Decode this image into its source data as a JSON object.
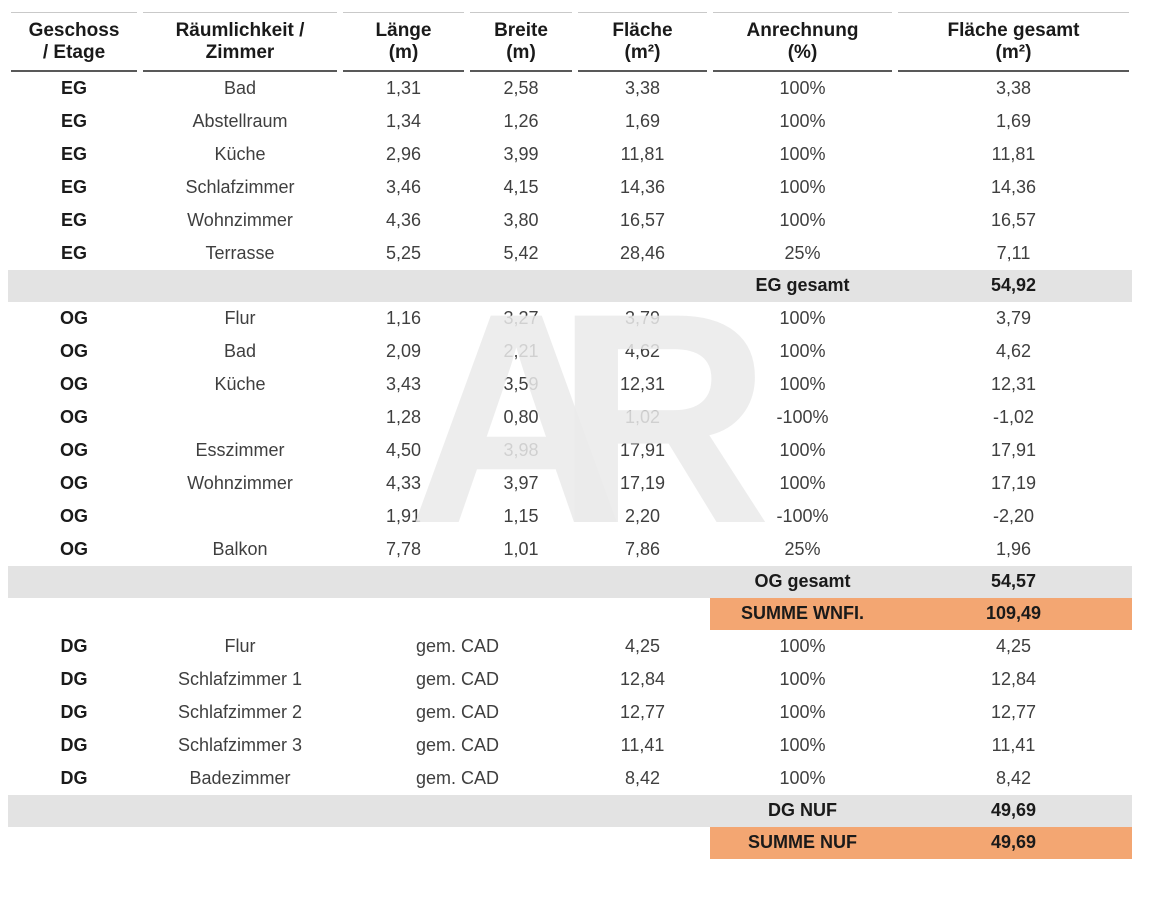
{
  "watermark": "AR",
  "colors": {
    "summary_gray": "#E3E3E3",
    "summary_orange": "#F3A672",
    "header_underline": "#595959"
  },
  "table": {
    "columns": [
      {
        "line1": "Geschoss",
        "line2": "/ Etage"
      },
      {
        "line1": "Räumlichkeit /",
        "line2": "Zimmer"
      },
      {
        "line1": "Länge",
        "line2": "(m)"
      },
      {
        "line1": "Breite",
        "line2": "(m)"
      },
      {
        "line1": "Fläche",
        "line2": "(m²)"
      },
      {
        "line1": "Anrechnung",
        "line2": "(%)"
      },
      {
        "line1": "Fläche gesamt",
        "line2": "(m²)"
      }
    ],
    "rows": [
      {
        "type": "data",
        "floor": "EG",
        "room": "Bad",
        "laenge": "1,31",
        "breite": "2,58",
        "flaeche": "3,38",
        "anrechnung": "100%",
        "gesamt": "3,38"
      },
      {
        "type": "data",
        "floor": "EG",
        "room": "Abstellraum",
        "laenge": "1,34",
        "breite": "1,26",
        "flaeche": "1,69",
        "anrechnung": "100%",
        "gesamt": "1,69"
      },
      {
        "type": "data",
        "floor": "EG",
        "room": "Küche",
        "laenge": "2,96",
        "breite": "3,99",
        "flaeche": "11,81",
        "anrechnung": "100%",
        "gesamt": "11,81"
      },
      {
        "type": "data",
        "floor": "EG",
        "room": "Schlafzimmer",
        "laenge": "3,46",
        "breite": "4,15",
        "flaeche": "14,36",
        "anrechnung": "100%",
        "gesamt": "14,36"
      },
      {
        "type": "data",
        "floor": "EG",
        "room": "Wohnzimmer",
        "laenge": "4,36",
        "breite": "3,80",
        "flaeche": "16,57",
        "anrechnung": "100%",
        "gesamt": "16,57"
      },
      {
        "type": "data",
        "floor": "EG",
        "room": "Terrasse",
        "laenge": "5,25",
        "breite": "5,42",
        "flaeche": "28,46",
        "anrechnung": "25%",
        "gesamt": "7,11"
      },
      {
        "type": "summary_gray",
        "label": "EG gesamt",
        "value": "54,92"
      },
      {
        "type": "data",
        "floor": "OG",
        "room": "Flur",
        "laenge": "1,16",
        "breite": "3,27",
        "flaeche": "3,79",
        "anrechnung": "100%",
        "gesamt": "3,79"
      },
      {
        "type": "data",
        "floor": "OG",
        "room": "Bad",
        "laenge": "2,09",
        "breite": "2,21",
        "flaeche": "4,62",
        "anrechnung": "100%",
        "gesamt": "4,62"
      },
      {
        "type": "data",
        "floor": "OG",
        "room": "Küche",
        "laenge": "3,43",
        "breite": "3,59",
        "flaeche": "12,31",
        "anrechnung": "100%",
        "gesamt": "12,31"
      },
      {
        "type": "data",
        "floor": "OG",
        "room": "",
        "laenge": "1,28",
        "breite": "0,80",
        "flaeche": "1,02",
        "anrechnung": "-100%",
        "gesamt": "-1,02"
      },
      {
        "type": "data",
        "floor": "OG",
        "room": "Esszimmer",
        "laenge": "4,50",
        "breite": "3,98",
        "flaeche": "17,91",
        "anrechnung": "100%",
        "gesamt": "17,91"
      },
      {
        "type": "data",
        "floor": "OG",
        "room": "Wohnzimmer",
        "laenge": "4,33",
        "breite": "3,97",
        "flaeche": "17,19",
        "anrechnung": "100%",
        "gesamt": "17,19"
      },
      {
        "type": "data",
        "floor": "OG",
        "room": "",
        "laenge": "1,91",
        "breite": "1,15",
        "flaeche": "2,20",
        "anrechnung": "-100%",
        "gesamt": "-2,20"
      },
      {
        "type": "data",
        "floor": "OG",
        "room": "Balkon",
        "laenge": "7,78",
        "breite": "1,01",
        "flaeche": "7,86",
        "anrechnung": "25%",
        "gesamt": "1,96"
      },
      {
        "type": "summary_gray",
        "label": "OG gesamt",
        "value": "54,57"
      },
      {
        "type": "summary_orange",
        "label": "SUMME WNFI.",
        "value": "109,49"
      },
      {
        "type": "data_cad",
        "floor": "DG",
        "room": "Flur",
        "merged": "gem. CAD",
        "flaeche": "4,25",
        "anrechnung": "100%",
        "gesamt": "4,25"
      },
      {
        "type": "data_cad",
        "floor": "DG",
        "room": "Schlafzimmer 1",
        "merged": "gem. CAD",
        "flaeche": "12,84",
        "anrechnung": "100%",
        "gesamt": "12,84"
      },
      {
        "type": "data_cad",
        "floor": "DG",
        "room": "Schlafzimmer 2",
        "merged": "gem. CAD",
        "flaeche": "12,77",
        "anrechnung": "100%",
        "gesamt": "12,77"
      },
      {
        "type": "data_cad",
        "floor": "DG",
        "room": "Schlafzimmer 3",
        "merged": "gem. CAD",
        "flaeche": "11,41",
        "anrechnung": "100%",
        "gesamt": "11,41"
      },
      {
        "type": "data_cad",
        "floor": "DG",
        "room": "Badezimmer",
        "merged": "gem. CAD",
        "flaeche": "8,42",
        "anrechnung": "100%",
        "gesamt": "8,42"
      },
      {
        "type": "summary_gray",
        "label": "DG NUF",
        "value": "49,69"
      },
      {
        "type": "summary_orange",
        "label": "SUMME NUF",
        "value": "49,69"
      }
    ]
  }
}
